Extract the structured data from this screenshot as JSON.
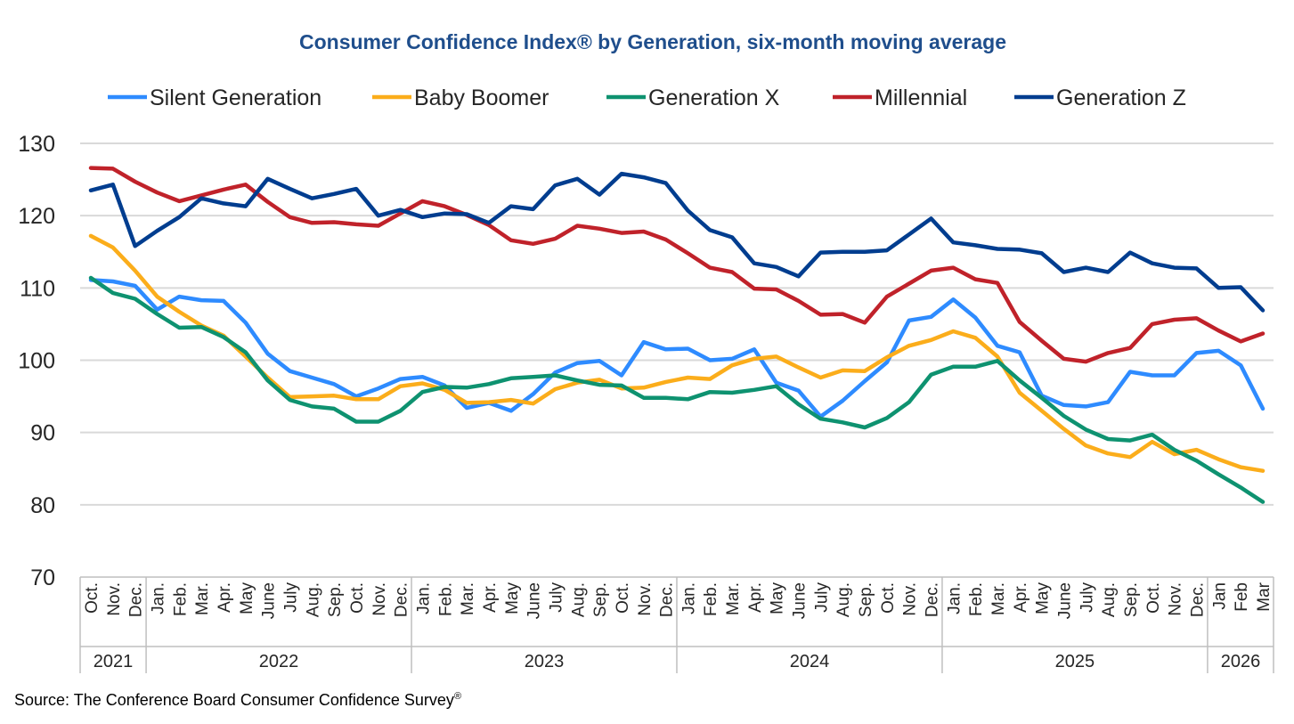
{
  "chart_data": {
    "type": "line",
    "title": "Consumer Confidence Index® by Generation, six-month moving average",
    "xlabel": "",
    "ylabel": "",
    "ylim": [
      70,
      130
    ],
    "yticks": [
      70,
      80,
      90,
      100,
      110,
      120,
      130
    ],
    "grid": true,
    "legend_position": "top",
    "months": [
      "Oct.",
      "Nov.",
      "Dec.",
      "Jan.",
      "Feb.",
      "Mar.",
      "Apr.",
      "May",
      "June",
      "July",
      "Aug.",
      "Sep.",
      "Oct.",
      "Nov.",
      "Dec.",
      "Jan.",
      "Feb.",
      "Mar.",
      "Apr.",
      "May",
      "June",
      "July",
      "Aug.",
      "Sep.",
      "Oct.",
      "Nov.",
      "Dec.",
      "Jan.",
      "Feb.",
      "Mar.",
      "Apr.",
      "May",
      "June",
      "July",
      "Aug.",
      "Sep.",
      "Oct.",
      "Nov.",
      "Dec.",
      "Jan.",
      "Feb.",
      "Mar.",
      "Apr.",
      "May",
      "June",
      "July",
      "Aug.",
      "Sep.",
      "Oct.",
      "Nov.",
      "Dec.",
      "Jan",
      "Feb",
      "Mar"
    ],
    "years": [
      {
        "label": "2021",
        "count": 3
      },
      {
        "label": "2022",
        "count": 12
      },
      {
        "label": "2023",
        "count": 12
      },
      {
        "label": "2024",
        "count": 12
      },
      {
        "label": "2025",
        "count": 12
      },
      {
        "label": "2026",
        "count": 3
      }
    ],
    "series": [
      {
        "name": "Silent Generation",
        "color": "#2e8bff",
        "values": [
          111.1,
          110.9,
          110.3,
          107.0,
          108.8,
          108.3,
          108.2,
          105.2,
          100.9,
          98.5,
          97.6,
          96.7,
          95.0,
          96.1,
          97.4,
          97.7,
          96.5,
          93.4,
          94.1,
          93.0,
          95.3,
          98.3,
          99.6,
          99.9,
          97.9,
          102.5,
          101.5,
          101.6,
          100.0,
          100.2,
          101.5,
          96.9,
          95.8,
          92.2,
          94.4,
          97.1,
          99.7,
          105.5,
          106.0,
          108.4,
          105.9,
          102.0,
          101.1,
          95.1,
          93.8,
          93.6,
          94.2,
          98.4,
          97.9,
          97.9,
          101.0,
          101.3,
          99.3,
          93.3
        ]
      },
      {
        "name": "Baby Boomer",
        "color": "#fbad1b",
        "values": [
          117.2,
          115.6,
          112.4,
          108.8,
          106.7,
          104.8,
          103.4,
          100.5,
          97.6,
          94.9,
          95.0,
          95.1,
          94.6,
          94.6,
          96.4,
          96.8,
          95.9,
          94.1,
          94.2,
          94.5,
          94.0,
          96.0,
          96.9,
          97.3,
          96.1,
          96.2,
          97.0,
          97.6,
          97.4,
          99.3,
          100.2,
          100.5,
          99.0,
          97.6,
          98.6,
          98.5,
          100.4,
          102.0,
          102.8,
          104.0,
          103.1,
          100.5,
          95.5,
          93.0,
          90.5,
          88.2,
          87.1,
          86.6,
          88.7,
          87.0,
          87.6,
          86.3,
          85.2,
          84.7
        ]
      },
      {
        "name": "Generation X",
        "color": "#0e9270",
        "values": [
          111.4,
          109.3,
          108.5,
          106.4,
          104.5,
          104.6,
          103.2,
          101.1,
          97.2,
          94.5,
          93.6,
          93.3,
          91.5,
          91.5,
          93.0,
          95.6,
          96.3,
          96.2,
          96.7,
          97.5,
          97.7,
          97.9,
          97.2,
          96.6,
          96.5,
          94.8,
          94.8,
          94.6,
          95.6,
          95.5,
          95.9,
          96.4,
          93.9,
          91.9,
          91.4,
          90.7,
          92.0,
          94.2,
          98.0,
          99.1,
          99.1,
          99.9,
          97.2,
          94.8,
          92.3,
          90.4,
          89.1,
          88.9,
          89.7,
          87.6,
          86.1,
          84.2,
          82.4,
          80.4
        ]
      },
      {
        "name": "Millennial",
        "color": "#c0222a",
        "values": [
          126.6,
          126.5,
          124.7,
          123.2,
          122.0,
          122.8,
          123.6,
          124.3,
          121.9,
          119.8,
          119.0,
          119.1,
          118.8,
          118.6,
          120.3,
          122.0,
          121.3,
          120.1,
          118.7,
          116.6,
          116.1,
          116.8,
          118.6,
          118.2,
          117.6,
          117.8,
          116.7,
          114.8,
          112.8,
          112.2,
          109.9,
          109.8,
          108.2,
          106.3,
          106.4,
          105.2,
          108.8,
          110.6,
          112.4,
          112.8,
          111.2,
          110.7,
          105.3,
          102.7,
          100.2,
          99.8,
          101.0,
          101.7,
          105.0,
          105.6,
          105.8,
          104.1,
          102.6,
          103.7
        ]
      },
      {
        "name": "Generation Z",
        "color": "#003d8f",
        "values": [
          123.5,
          124.3,
          115.8,
          117.9,
          119.8,
          122.4,
          121.7,
          121.3,
          125.1,
          123.7,
          122.4,
          123.0,
          123.7,
          120.0,
          120.8,
          119.8,
          120.3,
          120.2,
          119.0,
          121.3,
          120.9,
          124.2,
          125.1,
          122.9,
          125.8,
          125.3,
          124.5,
          120.7,
          118.0,
          117.0,
          113.4,
          112.9,
          111.6,
          114.9,
          115.0,
          115.0,
          115.2,
          117.4,
          119.6,
          116.3,
          115.9,
          115.4,
          115.3,
          114.8,
          112.2,
          112.8,
          112.2,
          114.9,
          113.4,
          112.8,
          112.7,
          110.0,
          110.1,
          106.9
        ]
      }
    ]
  },
  "source": "Source: The Conference Board Consumer Confidence Survey",
  "source_mark": "®"
}
